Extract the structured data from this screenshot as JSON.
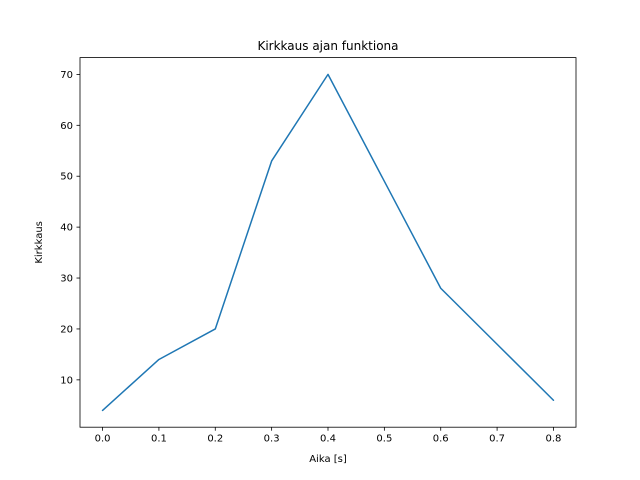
{
  "chart_data": {
    "type": "line",
    "title": "Kirkkaus ajan funktiona",
    "xlabel": "Aika [s]",
    "ylabel": "Kirkkaus",
    "x": [
      0.0,
      0.1,
      0.2,
      0.3,
      0.4,
      0.5,
      0.6,
      0.7,
      0.8
    ],
    "y": [
      4,
      14,
      20,
      53,
      70,
      49,
      28,
      17,
      6
    ],
    "series": [
      {
        "name": "Kirkkaus",
        "values": [
          4,
          14,
          20,
          53,
          70,
          49,
          28,
          17,
          6
        ]
      }
    ],
    "xticks": [
      0.0,
      0.1,
      0.2,
      0.3,
      0.4,
      0.5,
      0.6,
      0.7,
      0.8
    ],
    "xtick_labels": [
      "0.0",
      "0.1",
      "0.2",
      "0.3",
      "0.4",
      "0.5",
      "0.6",
      "0.7",
      "0.8"
    ],
    "yticks": [
      10,
      20,
      30,
      40,
      50,
      60,
      70
    ],
    "ytick_labels": [
      "10",
      "20",
      "30",
      "40",
      "50",
      "60",
      "70"
    ],
    "xlim": [
      -0.04,
      0.84
    ],
    "ylim": [
      0.7,
      73.3
    ],
    "line_color": "#1f77b4",
    "axis_color": "#000000",
    "background_color": "#ffffff",
    "grid": false,
    "legend": null
  }
}
